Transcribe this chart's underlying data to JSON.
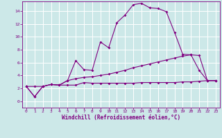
{
  "xlabel": "Windchill (Refroidissement éolien,°C)",
  "background_color": "#cce8e8",
  "grid_color": "#ffffff",
  "line_color": "#800080",
  "xlim": [
    -0.5,
    23.5
  ],
  "ylim": [
    -1,
    15.5
  ],
  "xticks": [
    0,
    1,
    2,
    3,
    4,
    5,
    6,
    7,
    8,
    9,
    10,
    11,
    12,
    13,
    14,
    15,
    16,
    17,
    18,
    19,
    20,
    21,
    22,
    23
  ],
  "yticks": [
    0,
    2,
    4,
    6,
    8,
    10,
    12,
    14
  ],
  "line1_x": [
    0,
    1,
    2,
    3,
    4,
    5,
    6,
    7,
    8,
    9,
    10,
    11,
    12,
    13,
    14,
    15,
    16,
    17,
    18,
    19,
    20,
    21,
    22,
    23
  ],
  "line1_y": [
    2.3,
    2.3,
    2.3,
    2.6,
    2.5,
    2.5,
    2.5,
    2.9,
    2.8,
    2.8,
    2.8,
    2.8,
    2.8,
    2.8,
    2.9,
    2.9,
    2.9,
    2.9,
    2.9,
    3.0,
    3.0,
    3.1,
    3.2,
    3.2
  ],
  "line2_x": [
    0,
    1,
    2,
    3,
    4,
    5,
    6,
    7,
    8,
    9,
    10,
    11,
    12,
    13,
    14,
    15,
    16,
    17,
    18,
    19,
    20,
    21,
    22,
    23
  ],
  "line2_y": [
    2.3,
    0.7,
    2.3,
    2.6,
    2.5,
    3.2,
    6.3,
    4.9,
    4.8,
    9.2,
    8.3,
    12.2,
    13.4,
    15.0,
    15.2,
    14.5,
    14.4,
    13.9,
    10.7,
    7.3,
    7.2,
    4.8,
    3.2,
    3.2
  ],
  "line3_x": [
    0,
    1,
    2,
    3,
    4,
    5,
    6,
    7,
    8,
    9,
    10,
    11,
    12,
    13,
    14,
    15,
    16,
    17,
    18,
    19,
    20,
    21,
    22,
    23
  ],
  "line3_y": [
    2.3,
    0.7,
    2.3,
    2.6,
    2.5,
    3.2,
    3.5,
    3.7,
    3.8,
    4.0,
    4.2,
    4.5,
    4.8,
    5.2,
    5.5,
    5.8,
    6.1,
    6.4,
    6.7,
    7.0,
    7.2,
    7.1,
    3.2,
    3.2
  ],
  "markersize": 2.0,
  "linewidth": 0.8
}
